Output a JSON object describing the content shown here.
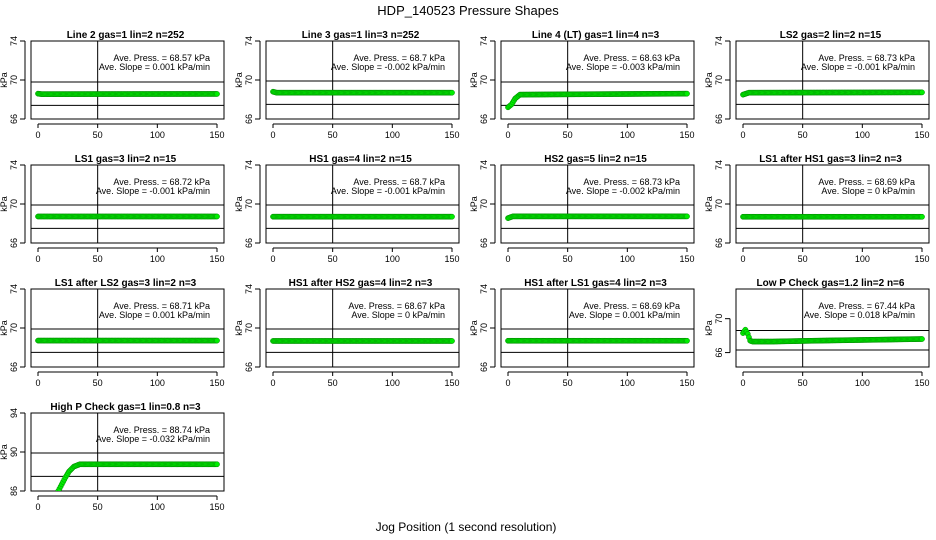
{
  "figure": {
    "title": "HDP_140523  Pressure Shapes",
    "xlabel": "Jog Position (1 second resolution)"
  },
  "style": {
    "point_fill": "#00ee00",
    "point_stroke": "#008800",
    "line": "#000000"
  },
  "chart_data": [
    {
      "type": "scatter",
      "title": "Line 2 gas=1 lin=2 n=252",
      "ylabel": "kPa",
      "xlim": [
        0,
        150
      ],
      "ylim": [
        66,
        74
      ],
      "xticks": [
        0,
        50,
        100,
        150
      ],
      "yticks": [
        66,
        70,
        74
      ],
      "hlines": [
        69.8,
        67.4
      ],
      "vline": 50,
      "annotation": [
        "Ave. Press. = 68.57 kPa",
        "Ave. Slope = 0.001 kPa/min"
      ],
      "x_range": [
        0,
        150
      ],
      "points": [
        [
          0,
          68.6
        ],
        [
          3,
          68.55
        ],
        [
          150,
          68.57
        ]
      ]
    },
    {
      "type": "scatter",
      "title": "Line 3 gas=1 lin=3 n=252",
      "ylabel": "kPa",
      "xlim": [
        0,
        150
      ],
      "ylim": [
        66,
        74
      ],
      "xticks": [
        0,
        50,
        100,
        150
      ],
      "yticks": [
        66,
        70,
        74
      ],
      "hlines": [
        69.9,
        67.5
      ],
      "vline": 50,
      "annotation": [
        "Ave. Press. = 68.7 kPa",
        "Ave. Slope = -0.002 kPa/min"
      ],
      "x_range": [
        0,
        150
      ],
      "points": [
        [
          0,
          68.8
        ],
        [
          3,
          68.7
        ],
        [
          150,
          68.7
        ]
      ]
    },
    {
      "type": "scatter",
      "title": "Line 4 (LT) gas=1 lin=4 n=3",
      "ylabel": "kPa",
      "xlim": [
        0,
        150
      ],
      "ylim": [
        66,
        74
      ],
      "xticks": [
        0,
        50,
        100,
        150
      ],
      "yticks": [
        66,
        70,
        74
      ],
      "hlines": [
        69.8,
        67.4
      ],
      "vline": 50,
      "annotation": [
        "Ave. Press. = 68.63 kPa",
        "Ave. Slope = -0.003 kPa/min"
      ],
      "x_range": [
        0,
        150
      ],
      "points": [
        [
          0,
          67.2
        ],
        [
          3,
          67.5
        ],
        [
          6,
          68.1
        ],
        [
          10,
          68.5
        ],
        [
          150,
          68.6
        ]
      ]
    },
    {
      "type": "scatter",
      "title": "LS2 gas=2 lin=2 n=15",
      "ylabel": "kPa",
      "xlim": [
        0,
        150
      ],
      "ylim": [
        66,
        74
      ],
      "xticks": [
        0,
        50,
        100,
        150
      ],
      "yticks": [
        66,
        70,
        74
      ],
      "hlines": [
        69.9,
        67.5
      ],
      "vline": 50,
      "annotation": [
        "Ave. Press. = 68.73 kPa",
        "Ave. Slope = -0.001 kPa/min"
      ],
      "x_range": [
        0,
        150
      ],
      "points": [
        [
          0,
          68.5
        ],
        [
          5,
          68.7
        ],
        [
          150,
          68.73
        ]
      ]
    },
    {
      "type": "scatter",
      "title": "LS1 gas=3 lin=2 n=15",
      "ylabel": "kPa",
      "xlim": [
        0,
        150
      ],
      "ylim": [
        66,
        74
      ],
      "xticks": [
        0,
        50,
        100,
        150
      ],
      "yticks": [
        66,
        70,
        74
      ],
      "hlines": [
        69.9,
        67.5
      ],
      "vline": 50,
      "annotation": [
        "Ave. Press. = 68.72 kPa",
        "Ave. Slope = -0.001 kPa/min"
      ],
      "x_range": [
        0,
        150
      ],
      "points": [
        [
          0,
          68.72
        ],
        [
          150,
          68.72
        ]
      ]
    },
    {
      "type": "scatter",
      "title": "HS1 gas=4 lin=2 n=15",
      "ylabel": "kPa",
      "xlim": [
        0,
        150
      ],
      "ylim": [
        66,
        74
      ],
      "xticks": [
        0,
        50,
        100,
        150
      ],
      "yticks": [
        66,
        70,
        74
      ],
      "hlines": [
        69.9,
        67.5
      ],
      "vline": 50,
      "annotation": [
        "Ave. Press. = 68.7 kPa",
        "Ave. Slope = -0.001 kPa/min"
      ],
      "x_range": [
        0,
        150
      ],
      "points": [
        [
          0,
          68.7
        ],
        [
          150,
          68.7
        ]
      ]
    },
    {
      "type": "scatter",
      "title": "HS2 gas=5 lin=2 n=15",
      "ylabel": "kPa",
      "xlim": [
        0,
        150
      ],
      "ylim": [
        66,
        74
      ],
      "xticks": [
        0,
        50,
        100,
        150
      ],
      "yticks": [
        66,
        70,
        74
      ],
      "hlines": [
        69.9,
        67.5
      ],
      "vline": 50,
      "annotation": [
        "Ave. Press. = 68.73 kPa",
        "Ave. Slope = -0.002 kPa/min"
      ],
      "x_range": [
        0,
        150
      ],
      "points": [
        [
          0,
          68.55
        ],
        [
          4,
          68.73
        ],
        [
          150,
          68.73
        ]
      ]
    },
    {
      "type": "scatter",
      "title": "LS1 after HS1 gas=3 lin=2 n=3",
      "ylabel": "kPa",
      "xlim": [
        0,
        150
      ],
      "ylim": [
        66,
        74
      ],
      "xticks": [
        0,
        50,
        100,
        150
      ],
      "yticks": [
        66,
        70,
        74
      ],
      "hlines": [
        69.9,
        67.5
      ],
      "vline": 50,
      "annotation": [
        "Ave. Press. = 68.69 kPa",
        "Ave. Slope = 0 kPa/min"
      ],
      "x_range": [
        0,
        150
      ],
      "points": [
        [
          0,
          68.69
        ],
        [
          150,
          68.69
        ]
      ]
    },
    {
      "type": "scatter",
      "title": "LS1 after LS2 gas=3 lin=2 n=3",
      "ylabel": "kPa",
      "xlim": [
        0,
        150
      ],
      "ylim": [
        66,
        74
      ],
      "xticks": [
        0,
        50,
        100,
        150
      ],
      "yticks": [
        66,
        70,
        74
      ],
      "hlines": [
        69.9,
        67.5
      ],
      "vline": 50,
      "annotation": [
        "Ave. Press. = 68.71 kPa",
        "Ave. Slope = 0.001 kPa/min"
      ],
      "x_range": [
        0,
        150
      ],
      "points": [
        [
          0,
          68.71
        ],
        [
          150,
          68.71
        ]
      ]
    },
    {
      "type": "scatter",
      "title": "HS1 after HS2 gas=4 lin=2 n=3",
      "ylabel": "kPa",
      "xlim": [
        0,
        150
      ],
      "ylim": [
        66,
        74
      ],
      "xticks": [
        0,
        50,
        100,
        150
      ],
      "yticks": [
        66,
        70,
        74
      ],
      "hlines": [
        69.9,
        67.5
      ],
      "vline": 50,
      "annotation": [
        "Ave. Press. = 68.67 kPa",
        "Ave. Slope = 0 kPa/min"
      ],
      "x_range": [
        0,
        150
      ],
      "points": [
        [
          0,
          68.67
        ],
        [
          150,
          68.67
        ]
      ]
    },
    {
      "type": "scatter",
      "title": "HS1 after LS1 gas=4 lin=2 n=3",
      "ylabel": "kPa",
      "xlim": [
        0,
        150
      ],
      "ylim": [
        66,
        74
      ],
      "xticks": [
        0,
        50,
        100,
        150
      ],
      "yticks": [
        66,
        70,
        74
      ],
      "hlines": [
        69.9,
        67.5
      ],
      "vline": 50,
      "annotation": [
        "Ave. Press. = 68.69 kPa",
        "Ave. Slope = 0.001 kPa/min"
      ],
      "x_range": [
        0,
        150
      ],
      "points": [
        [
          0,
          68.69
        ],
        [
          150,
          68.69
        ]
      ]
    },
    {
      "type": "scatter",
      "title": "Low P Check gas=1.2 lin=2 n=6",
      "ylabel": "kPa",
      "xlim": [
        0,
        150
      ],
      "ylim": [
        64.3,
        73.5
      ],
      "xticks": [
        0,
        50,
        100,
        150
      ],
      "yticks": [
        66,
        70
      ],
      "hlines": [
        68.6,
        66.3
      ],
      "vline": 50,
      "annotation": [
        "Ave. Press. = 67.44 kPa",
        "Ave. Slope = 0.018 kPa/min"
      ],
      "x_range": [
        0,
        150
      ],
      "points": [
        [
          0,
          68.3
        ],
        [
          2,
          68.7
        ],
        [
          4,
          68.2
        ],
        [
          6,
          67.4
        ],
        [
          8,
          67.3
        ],
        [
          25,
          67.3
        ],
        [
          60,
          67.4
        ],
        [
          150,
          67.6
        ]
      ]
    },
    {
      "type": "scatter",
      "title": "High P Check gas=1 lin=0.8 n=3",
      "ylabel": "kPa",
      "xlim": [
        0,
        150
      ],
      "ylim": [
        86,
        94
      ],
      "xticks": [
        0,
        50,
        100,
        150
      ],
      "yticks": [
        86,
        90,
        94
      ],
      "hlines": [
        89.9,
        87.5
      ],
      "vline": 50,
      "annotation": [
        "Ave. Press. = 88.74 kPa",
        "Ave. Slope = -0.032 kPa/min"
      ],
      "x_range": [
        17,
        150
      ],
      "points": [
        [
          17,
          86.0
        ],
        [
          20,
          86.7
        ],
        [
          23,
          87.4
        ],
        [
          26,
          88.0
        ],
        [
          30,
          88.5
        ],
        [
          35,
          88.74
        ],
        [
          150,
          88.74
        ]
      ]
    }
  ]
}
